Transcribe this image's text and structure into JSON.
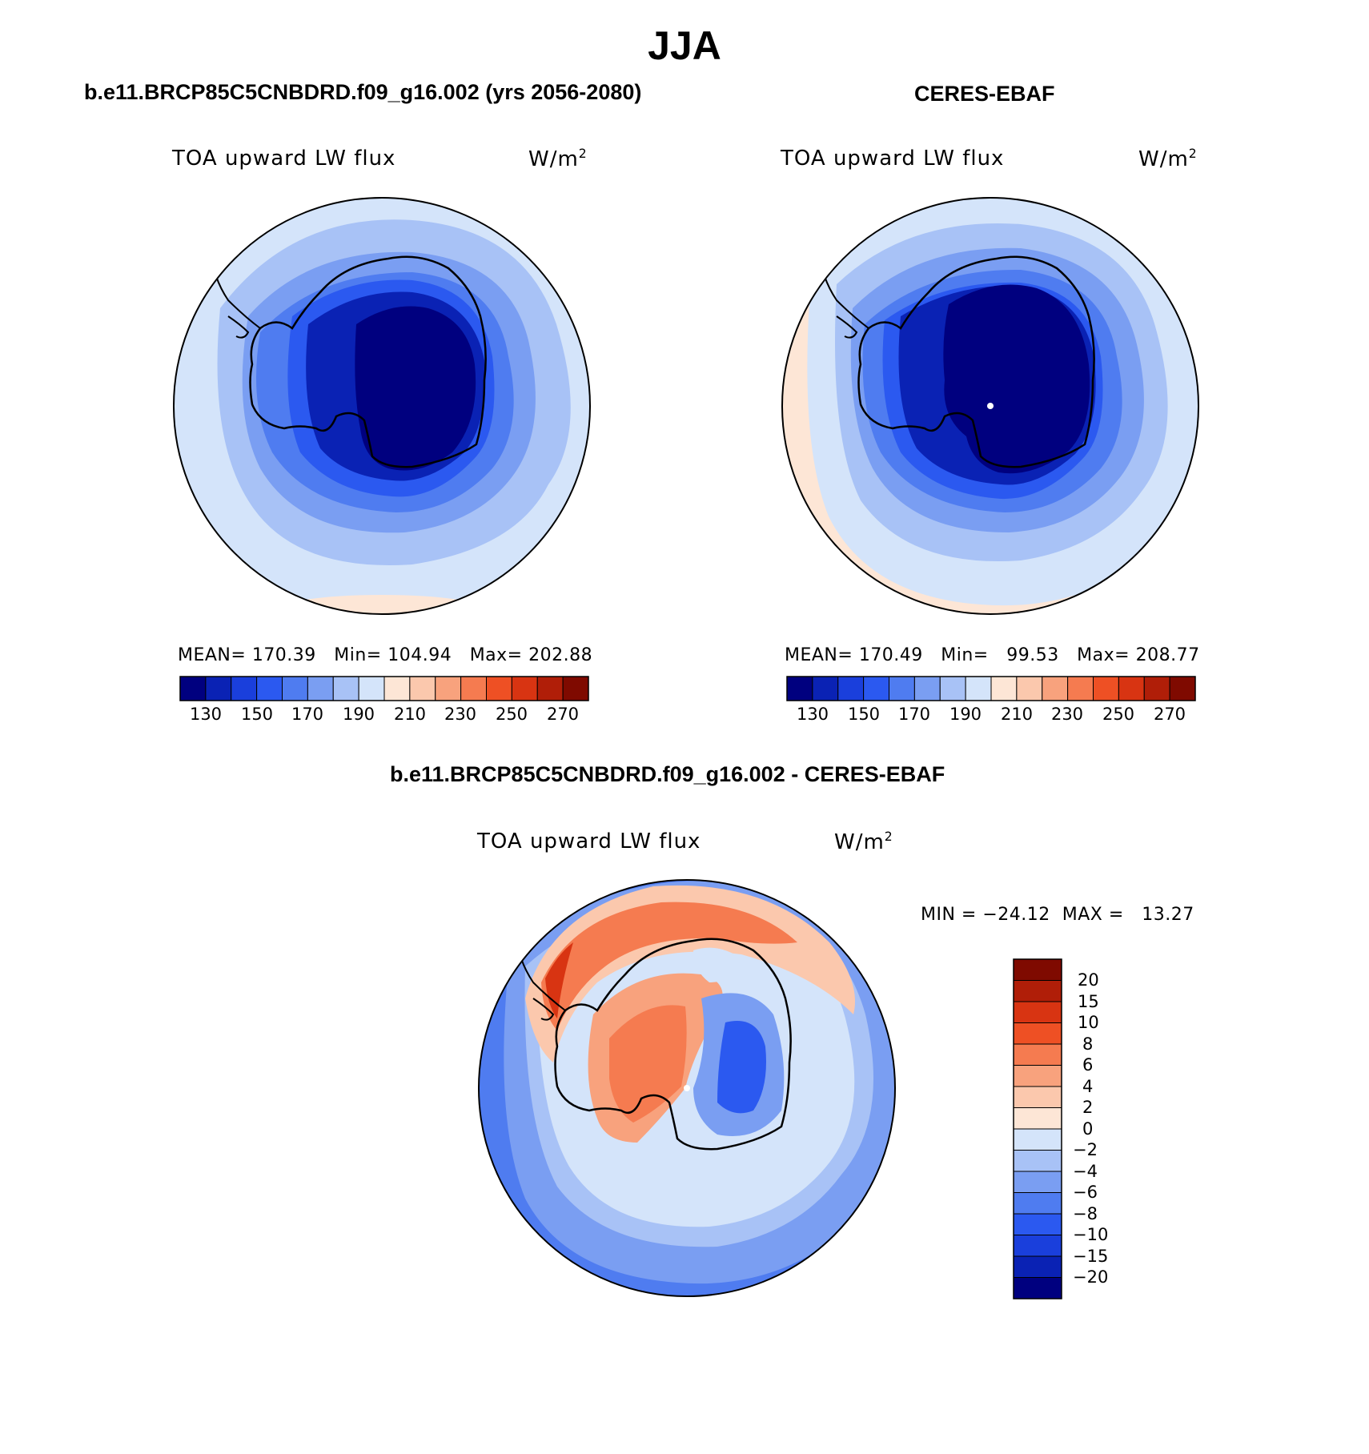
{
  "main_title": "JJA",
  "panels": [
    {
      "id": "model",
      "title": "b.e11.BRCP85C5CNBDRD.f09_g16.002 (yrs 2056-2080)",
      "variable": "TOA upward LW flux",
      "units_base": "W/m",
      "units_sup": "2",
      "stats": "MEAN= 170.39   Min= 104.94   Max= 202.88",
      "colorbar_ticks": [
        "130",
        "150",
        "170",
        "190",
        "210",
        "230",
        "250",
        "270"
      ]
    },
    {
      "id": "obs",
      "title": "CERES-EBAF",
      "variable": "TOA upward LW flux",
      "units_base": "W/m",
      "units_sup": "2",
      "stats": "MEAN= 170.49   Min=   99.53   Max= 208.77",
      "colorbar_ticks": [
        "130",
        "150",
        "170",
        "190",
        "210",
        "230",
        "250",
        "270"
      ]
    },
    {
      "id": "diff",
      "title": "b.e11.BRCP85C5CNBDRD.f09_g16.002 - CERES-EBAF",
      "variable": "TOA upward LW flux",
      "units_base": "W/m",
      "units_sup": "2",
      "stats": "MIN = −24.12  MAX =   13.27",
      "colorbar_ticks": [
        "20",
        "15",
        "10",
        "8",
        "6",
        "4",
        "2",
        "0",
        "−2",
        "−4",
        "−6",
        "−8",
        "−10",
        "−15",
        "−20"
      ]
    }
  ],
  "colors": {
    "abs_scale": [
      "#00007f",
      "#0a22b4",
      "#1a3fdc",
      "#2b59f0",
      "#4f7cf0",
      "#7a9ef2",
      "#a8c2f6",
      "#d4e4fa",
      "#fde6d6",
      "#fbc8ad",
      "#f8a27d",
      "#f57b50",
      "#ee5024",
      "#d83412",
      "#b01e08",
      "#7f0a00"
    ],
    "diff_scale": [
      "#7f0a00",
      "#b01e08",
      "#d83412",
      "#ee5024",
      "#f57b50",
      "#f8a27d",
      "#fbc8ad",
      "#fde6d6",
      "#d4e4fa",
      "#a8c2f6",
      "#7a9ef2",
      "#4f7cf0",
      "#2b59f0",
      "#1a3fdc",
      "#0a22b4",
      "#00007f"
    ]
  }
}
